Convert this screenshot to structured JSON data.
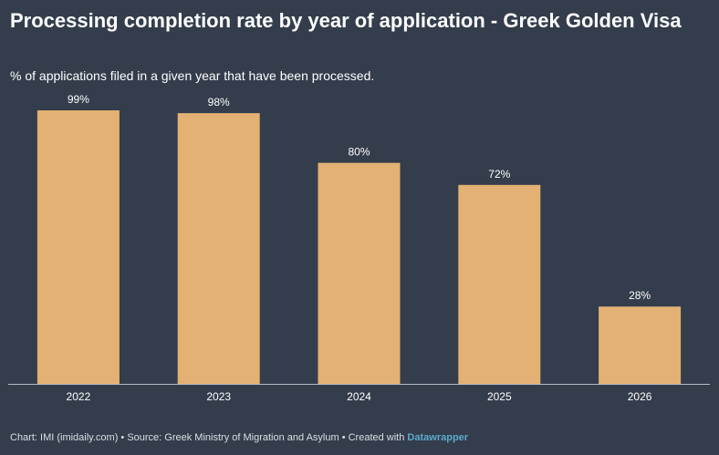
{
  "chart_data": {
    "type": "bar",
    "title": "Processing completion rate by year of application - Greek Golden Visa",
    "subtitle": "% of applications filed in a given year that have been processed.",
    "categories": [
      "2022",
      "2023",
      "2024",
      "2025",
      "2026"
    ],
    "values": [
      99,
      98,
      80,
      72,
      28
    ],
    "value_labels": [
      "99%",
      "98%",
      "80%",
      "72%",
      "28%"
    ],
    "unit": "%",
    "ylim": [
      0,
      100
    ],
    "grid": false,
    "legend": "none",
    "bar_color": "#e3b173"
  },
  "footer": {
    "text": "Chart: IMI (imidaily.com) • Source: Greek Ministry of Migration and Asylum • Created with",
    "brand": "Datawrapper"
  },
  "colors": {
    "background": "#333d4c",
    "bar": "#e3b173",
    "text": "#ffffff",
    "brand": "#5ea9cc"
  }
}
